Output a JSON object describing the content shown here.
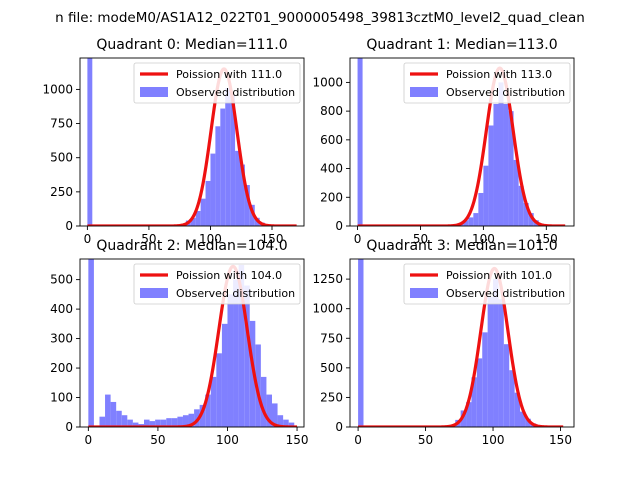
{
  "figure": {
    "suptitle": "n file: modeM0/AS1A12_022T01_9000005498_39813cztM0_level2_quad_clean"
  },
  "chart_data": [
    {
      "type": "bar",
      "title": "Quadrant 0: Median=111.0",
      "xlabel": "",
      "ylabel": "",
      "xlim": [
        -6,
        176
      ],
      "ylim": [
        0,
        1230
      ],
      "xticks": [
        0,
        50,
        100,
        150
      ],
      "yticks": [
        0,
        250,
        500,
        750,
        1000
      ],
      "legend_position": "top-right",
      "legend": [
        "Poission with 111.0",
        "Observed distribution"
      ],
      "colors": {
        "histogram": "#8080ff",
        "fit": "#ee1111"
      },
      "histogram": {
        "name": "Observed distribution",
        "bin_width": 4,
        "bins": [
          [
            0,
            1230
          ],
          [
            72,
            5
          ],
          [
            76,
            15
          ],
          [
            80,
            40
          ],
          [
            84,
            60
          ],
          [
            88,
            110
          ],
          [
            92,
            200
          ],
          [
            96,
            330
          ],
          [
            100,
            530
          ],
          [
            104,
            730
          ],
          [
            108,
            860
          ],
          [
            112,
            1010
          ],
          [
            116,
            960
          ],
          [
            120,
            550
          ],
          [
            124,
            450
          ],
          [
            128,
            300
          ],
          [
            132,
            155
          ],
          [
            136,
            60
          ],
          [
            140,
            25
          ],
          [
            144,
            10
          ]
        ]
      },
      "fit": {
        "name": "Poission with 111.0",
        "mean": 111.0,
        "peak": 1150,
        "x_range": [
          0,
          170
        ]
      }
    },
    {
      "type": "bar",
      "title": "Quadrant 1: Median=113.0",
      "xlabel": "",
      "ylabel": "",
      "xlim": [
        -6,
        172
      ],
      "ylim": [
        0,
        1170
      ],
      "xticks": [
        0,
        50,
        100,
        150
      ],
      "yticks": [
        0,
        200,
        400,
        600,
        800,
        1000
      ],
      "legend_position": "top-right",
      "legend": [
        "Poission with 113.0",
        "Observed distribution"
      ],
      "colors": {
        "histogram": "#8080ff",
        "fit": "#ee1111"
      },
      "histogram": {
        "name": "Observed distribution",
        "bin_width": 4,
        "bins": [
          [
            0,
            1170
          ],
          [
            72,
            5
          ],
          [
            76,
            10
          ],
          [
            80,
            20
          ],
          [
            84,
            40
          ],
          [
            88,
            60
          ],
          [
            92,
            90
          ],
          [
            96,
            230
          ],
          [
            100,
            420
          ],
          [
            104,
            700
          ],
          [
            108,
            850
          ],
          [
            112,
            1000
          ],
          [
            116,
            850
          ],
          [
            120,
            800
          ],
          [
            124,
            460
          ],
          [
            128,
            280
          ],
          [
            132,
            160
          ],
          [
            136,
            90
          ],
          [
            140,
            40
          ],
          [
            144,
            15
          ],
          [
            148,
            5
          ]
        ]
      },
      "fit": {
        "name": "Poission with 113.0",
        "mean": 113.0,
        "peak": 1100,
        "x_range": [
          0,
          165
        ]
      }
    },
    {
      "type": "bar",
      "title": "Quadrant 2: Median=104.0",
      "xlabel": "",
      "ylabel": "",
      "xlim": [
        -6,
        155
      ],
      "ylim": [
        0,
        570
      ],
      "xticks": [
        0,
        50,
        100,
        150
      ],
      "yticks": [
        0,
        100,
        200,
        300,
        400,
        500
      ],
      "legend_position": "top-right",
      "legend": [
        "Poission with 104.0",
        "Observed distribution"
      ],
      "colors": {
        "histogram": "#8080ff",
        "fit": "#ee1111"
      },
      "histogram": {
        "name": "Observed distribution",
        "bin_width": 4,
        "bins": [
          [
            0,
            570
          ],
          [
            8,
            35
          ],
          [
            12,
            110
          ],
          [
            16,
            85
          ],
          [
            20,
            55
          ],
          [
            24,
            40
          ],
          [
            28,
            25
          ],
          [
            32,
            15
          ],
          [
            36,
            10
          ],
          [
            40,
            25
          ],
          [
            44,
            20
          ],
          [
            48,
            25
          ],
          [
            52,
            25
          ],
          [
            56,
            30
          ],
          [
            60,
            30
          ],
          [
            64,
            35
          ],
          [
            68,
            40
          ],
          [
            72,
            45
          ],
          [
            76,
            60
          ],
          [
            80,
            75
          ],
          [
            84,
            110
          ],
          [
            88,
            170
          ],
          [
            92,
            250
          ],
          [
            96,
            350
          ],
          [
            100,
            450
          ],
          [
            104,
            500
          ],
          [
            108,
            550
          ],
          [
            112,
            480
          ],
          [
            116,
            360
          ],
          [
            120,
            280
          ],
          [
            124,
            170
          ],
          [
            128,
            110
          ],
          [
            132,
            80
          ],
          [
            136,
            40
          ],
          [
            140,
            25
          ],
          [
            144,
            15
          ]
        ]
      },
      "fit": {
        "name": "Poission with 104.0",
        "mean": 104.0,
        "peak": 545,
        "x_range": [
          0,
          150
        ]
      }
    },
    {
      "type": "bar",
      "title": "Quadrant 3: Median=101.0",
      "xlabel": "",
      "ylabel": "",
      "xlim": [
        -6,
        160
      ],
      "ylim": [
        0,
        1420
      ],
      "xticks": [
        0,
        50,
        100,
        150
      ],
      "yticks": [
        0,
        250,
        500,
        750,
        1000,
        1250
      ],
      "legend_position": "top-right",
      "legend": [
        "Poission with 101.0",
        "Observed distribution"
      ],
      "colors": {
        "histogram": "#8080ff",
        "fit": "#ee1111"
      },
      "histogram": {
        "name": "Observed distribution",
        "bin_width": 4,
        "bins": [
          [
            0,
            1420
          ],
          [
            64,
            5
          ],
          [
            68,
            20
          ],
          [
            72,
            60
          ],
          [
            76,
            140
          ],
          [
            80,
            210
          ],
          [
            84,
            420
          ],
          [
            88,
            580
          ],
          [
            92,
            800
          ],
          [
            96,
            1100
          ],
          [
            100,
            1250
          ],
          [
            104,
            1080
          ],
          [
            108,
            700
          ],
          [
            112,
            480
          ],
          [
            116,
            290
          ],
          [
            120,
            130
          ],
          [
            124,
            70
          ],
          [
            128,
            30
          ],
          [
            132,
            10
          ]
        ]
      },
      "fit": {
        "name": "Poission with 101.0",
        "mean": 101.0,
        "peak": 1340,
        "x_range": [
          0,
          152
        ]
      }
    }
  ]
}
